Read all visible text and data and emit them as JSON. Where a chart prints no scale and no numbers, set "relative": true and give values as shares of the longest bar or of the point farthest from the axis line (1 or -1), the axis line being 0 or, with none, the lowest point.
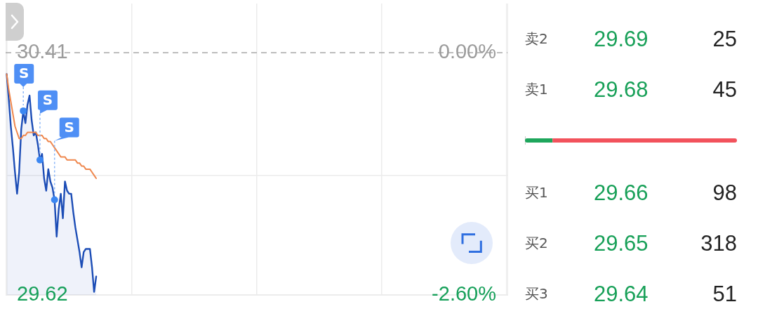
{
  "chart_data": [
    {
      "type": "line",
      "categories": [
        null,
        null,
        null,
        null,
        null,
        null,
        null,
        null,
        null,
        null,
        null,
        null,
        null,
        null,
        null,
        null,
        null,
        null,
        null,
        null,
        null,
        null,
        null,
        null,
        null,
        null,
        null,
        null,
        null,
        null,
        null,
        null,
        null,
        null,
        null,
        null,
        null,
        null,
        null,
        null,
        null,
        null,
        null,
        null,
        null,
        null,
        null,
        null,
        null,
        null,
        null,
        null,
        null,
        null,
        null,
        null,
        null,
        null,
        null,
        null,
        null,
        null,
        null,
        null,
        null,
        null,
        null,
        null,
        null,
        null,
        null,
        null,
        null,
        null,
        null,
        null,
        null,
        null,
        null,
        null,
        null,
        null,
        null,
        null,
        null,
        null,
        null,
        null,
        null,
        null,
        null,
        null,
        null,
        null,
        null,
        null,
        null,
        null,
        null,
        null,
        null,
        null,
        null,
        null,
        null,
        null,
        null,
        null,
        null,
        null,
        null,
        null,
        null,
        null,
        null,
        null,
        null,
        null,
        null,
        null,
        null,
        null,
        null,
        null,
        null,
        null,
        null,
        null,
        null,
        null,
        null,
        null,
        null,
        null,
        null,
        null,
        null,
        null,
        null,
        null,
        null,
        null,
        null,
        null,
        null,
        null,
        null,
        null,
        null,
        null,
        null,
        null,
        null,
        null,
        null,
        null,
        null,
        null,
        null,
        null,
        null,
        null,
        null,
        null,
        null,
        null,
        null,
        null,
        null,
        null,
        null,
        null,
        null,
        null,
        null,
        null,
        null,
        null,
        null,
        null,
        null,
        null,
        null,
        null,
        null,
        null,
        null,
        null,
        null,
        null,
        null,
        null,
        null,
        null,
        null,
        null,
        null,
        null,
        null,
        null,
        null,
        null,
        null,
        null,
        null,
        null,
        null,
        null,
        null,
        null,
        null,
        null,
        null,
        null,
        null,
        null,
        null,
        null,
        null,
        null,
        null,
        null,
        null,
        null,
        null,
        null,
        null,
        null,
        null,
        null,
        null,
        null,
        null,
        null,
        null,
        null,
        null,
        null,
        null,
        null,
        null
      ],
      "series": [
        {
          "type": "area",
          "color": "#1c4db6",
          "values": [
            30.34,
            30.26,
            30.17,
            30.1,
            30.02,
            29.95,
            30.02,
            30.16,
            30.22,
            30.18,
            30.24,
            30.27,
            30.19,
            30.14,
            30.15,
            30.11,
            30.06,
            30.08,
            30,
            29.96,
            30.03,
            29.99,
            29.97,
            29.93,
            29.81,
            29.9,
            29.95,
            29.87,
            29.99,
            29.96,
            29.95,
            29.95,
            29.89,
            29.84,
            29.8,
            29.76,
            29.71,
            29.76,
            29.77,
            29.77,
            29.77,
            29.71,
            29.63,
            29.68,
            null,
            null,
            null,
            null,
            null,
            null,
            null,
            null,
            null,
            null,
            null,
            null,
            null,
            null,
            null,
            null,
            null,
            null,
            null,
            null,
            null,
            null,
            null,
            null,
            null,
            null,
            null,
            null,
            null,
            null,
            null,
            null,
            null,
            null,
            null,
            null,
            null,
            null,
            null,
            null,
            null,
            null,
            null,
            null,
            null,
            null,
            null,
            null,
            null,
            null,
            null,
            null,
            null,
            null,
            null,
            null,
            null,
            null,
            null,
            null,
            null,
            null,
            null,
            null,
            null,
            null,
            null,
            null,
            null,
            null,
            null,
            null,
            null,
            null,
            null,
            null,
            null,
            null,
            null,
            null,
            null,
            null,
            null,
            null,
            null,
            null,
            null,
            null,
            null,
            null,
            null,
            null,
            null,
            null,
            null,
            null,
            null,
            null,
            null,
            null,
            null,
            null,
            null,
            null,
            null,
            null,
            null,
            null,
            null,
            null,
            null,
            null,
            null,
            null,
            null,
            null,
            null,
            null,
            null,
            null,
            null,
            null,
            null,
            null,
            null,
            null,
            null,
            null,
            null,
            null,
            null,
            null,
            null,
            null,
            null,
            null,
            null,
            null,
            null,
            null,
            null,
            null,
            null,
            null,
            null,
            null,
            null,
            null,
            null,
            null,
            null,
            null,
            null,
            null,
            null,
            null,
            null,
            null,
            null,
            null,
            null,
            null,
            null,
            null,
            null,
            null,
            null,
            null,
            null,
            null,
            null,
            null,
            null,
            null,
            null,
            null,
            null,
            null,
            null,
            null,
            null,
            null,
            null,
            null,
            null,
            null,
            null,
            null,
            null,
            null,
            null,
            null,
            null,
            null,
            null,
            null,
            null
          ]
        },
        {
          "type": "line",
          "color": "#ef874d",
          "values": [
            30.34,
            30.29,
            30.25,
            30.21,
            30.17,
            30.15,
            30.13,
            30.13,
            30.14,
            30.14,
            30.15,
            30.15,
            30.15,
            30.15,
            30.15,
            30.14,
            30.14,
            30.14,
            30.13,
            30.13,
            30.12,
            30.12,
            30.11,
            30.1,
            30.09,
            30.08,
            30.07,
            30.07,
            30.07,
            30.06,
            30.06,
            30.06,
            30.06,
            30.06,
            30.05,
            30.05,
            30.04,
            30.04,
            30.03,
            30.03,
            30.03,
            30.02,
            30.01,
            30,
            null,
            null,
            null,
            null,
            null,
            null,
            null,
            null,
            null,
            null,
            null,
            null,
            null,
            null,
            null,
            null,
            null,
            null,
            null,
            null,
            null,
            null,
            null,
            null,
            null,
            null,
            null,
            null,
            null,
            null,
            null,
            null,
            null,
            null,
            null,
            null,
            null,
            null,
            null,
            null,
            null,
            null,
            null,
            null,
            null,
            null,
            null,
            null,
            null,
            null,
            null,
            null,
            null,
            null,
            null,
            null,
            null,
            null,
            null,
            null,
            null,
            null,
            null,
            null,
            null,
            null,
            null,
            null,
            null,
            null,
            null,
            null,
            null,
            null,
            null,
            null,
            null,
            null,
            null,
            null,
            null,
            null,
            null,
            null,
            null,
            null,
            null,
            null,
            null,
            null,
            null,
            null,
            null,
            null,
            null,
            null,
            null,
            null,
            null,
            null,
            null,
            null,
            null,
            null,
            null,
            null,
            null,
            null,
            null,
            null,
            null,
            null,
            null,
            null,
            null,
            null,
            null,
            null,
            null,
            null,
            null,
            null,
            null,
            null,
            null,
            null,
            null,
            null,
            null,
            null,
            null,
            null,
            null,
            null,
            null,
            null,
            null,
            null,
            null,
            null,
            null,
            null,
            null,
            null,
            null,
            null,
            null,
            null,
            null,
            null,
            null,
            null,
            null,
            null,
            null,
            null,
            null,
            null,
            null,
            null,
            null,
            null,
            null,
            null,
            null,
            null,
            null,
            null,
            null,
            null,
            null,
            null,
            null,
            null,
            null,
            null,
            null,
            null,
            null,
            null,
            null,
            null,
            null,
            null,
            null,
            null,
            null,
            null,
            null,
            null,
            null,
            null,
            null,
            null,
            null,
            null,
            null
          ]
        },
        {
          "type": "scatter",
          "color": "#3b87f2",
          "marker": "circle",
          "values": [
            null,
            null,
            null,
            null,
            null,
            null,
            null,
            null,
            30.22,
            null,
            null,
            null,
            null,
            null,
            null,
            null,
            30.06,
            null,
            null,
            null,
            null,
            null,
            null,
            29.93,
            null,
            null,
            null,
            null,
            null,
            null,
            null,
            null,
            null,
            null,
            null,
            null,
            null,
            null,
            null,
            null,
            null,
            null,
            null,
            null,
            null,
            null,
            null,
            null,
            null,
            null,
            null,
            null,
            null,
            null,
            null,
            null,
            null,
            null,
            null,
            null,
            null,
            null,
            null,
            null,
            null,
            null,
            null,
            null,
            null,
            null,
            null,
            null,
            null,
            null,
            null,
            null,
            null,
            null,
            null,
            null,
            null,
            null,
            null,
            null,
            null,
            null,
            null,
            null,
            null,
            null,
            null,
            null,
            null,
            null,
            null,
            null,
            null,
            null,
            null,
            null,
            null,
            null,
            null,
            null,
            null,
            null,
            null,
            null,
            null,
            null,
            null,
            null,
            null,
            null,
            null,
            null,
            null,
            null,
            null,
            null,
            null,
            null,
            null,
            null,
            null,
            null,
            null,
            null,
            null,
            null,
            null,
            null,
            null,
            null,
            null,
            null,
            null,
            null,
            null,
            null,
            null,
            null,
            null,
            null,
            null,
            null,
            null,
            null,
            null,
            null,
            null,
            null,
            null,
            null,
            null,
            null,
            null,
            null,
            null,
            null,
            null,
            null,
            null,
            null,
            null,
            null,
            null,
            null,
            null,
            null,
            null,
            null,
            null,
            null,
            null,
            null,
            null,
            null,
            null,
            null,
            null,
            null,
            null,
            null,
            null,
            null,
            null,
            null,
            null,
            null,
            null,
            null,
            null,
            null,
            null,
            null,
            null,
            null,
            null,
            null,
            null,
            null,
            null,
            null,
            null,
            null,
            null,
            null,
            null,
            null,
            null,
            null,
            null,
            null,
            null,
            null,
            null,
            null,
            null,
            null,
            null,
            null,
            null,
            null,
            null,
            null,
            null,
            null,
            null,
            null,
            null,
            null,
            null,
            null,
            null,
            null,
            null,
            null,
            null,
            null,
            null
          ],
          "value_labels": [
            null,
            null,
            null,
            null,
            null,
            null,
            null,
            null,
            "S",
            null,
            null,
            null,
            null,
            null,
            null,
            null,
            "S",
            null,
            null,
            null,
            null,
            null,
            null,
            "S",
            null,
            null,
            null,
            null,
            null,
            null,
            null,
            null,
            null,
            null,
            null,
            null,
            null,
            null,
            null,
            null,
            null,
            null,
            null,
            null,
            null,
            null,
            null,
            null,
            null,
            null,
            null,
            null,
            null,
            null,
            null,
            null,
            null,
            null,
            null,
            null,
            null,
            null,
            null,
            null,
            null,
            null,
            null,
            null,
            null,
            null,
            null,
            null,
            null,
            null,
            null,
            null,
            null,
            null,
            null,
            null,
            null,
            null,
            null,
            null,
            null,
            null,
            null,
            null,
            null,
            null,
            null,
            null,
            null,
            null,
            null,
            null,
            null,
            null,
            null,
            null,
            null,
            null,
            null,
            null,
            null,
            null,
            null,
            null,
            null,
            null,
            null,
            null,
            null,
            null,
            null,
            null,
            null,
            null,
            null,
            null,
            null,
            null,
            null,
            null,
            null,
            null,
            null,
            null,
            null,
            null,
            null,
            null,
            null,
            null,
            null,
            null,
            null,
            null,
            null,
            null,
            null,
            null,
            null,
            null,
            null,
            null,
            null,
            null,
            null,
            null,
            null,
            null,
            null,
            null,
            null,
            null,
            null,
            null,
            null,
            null,
            null,
            null,
            null,
            null,
            null,
            null,
            null,
            null,
            null,
            null,
            null,
            null,
            null,
            null,
            null,
            null,
            null,
            null,
            null,
            null,
            null,
            null,
            null,
            null,
            null,
            null,
            null,
            null,
            null,
            null,
            null,
            null,
            null,
            null,
            null,
            null,
            null,
            null,
            null,
            null,
            null,
            null,
            null,
            null,
            null,
            null,
            null,
            null,
            null,
            null,
            null,
            null,
            null,
            null,
            null,
            null,
            null,
            null,
            null,
            null,
            null,
            null,
            null,
            null,
            null,
            null,
            null,
            null,
            null,
            null,
            null,
            null,
            null,
            null,
            null,
            null,
            null,
            null,
            null,
            null,
            null
          ]
        }
      ],
      "ylim": [
        29.62,
        30.57
      ],
      "yticks": [
        30.41,
        {
          "value": 30.01,
          "label": null
        },
        29.62
      ],
      "y2lim": [
        -2.6,
        0.53
      ],
      "y2ticks": [
        {
          "value": 0,
          "label": "0.00%"
        },
        {
          "value": -2.6,
          "label": "-2.60%"
        }
      ],
      "ref_lines": [
        {
          "axis": "y",
          "value": 30.41,
          "color": "#a6a6a6",
          "line_style": "dashed"
        }
      ],
      "grid": true
    },
    {
      "type": "other",
      "annotations": [
        "卖2",
        "29.69",
        "25",
        "卖1",
        "29.68",
        "45"
      ]
    },
    {
      "type": "bar",
      "orientation": "horizontal",
      "stacked": true,
      "relative": true,
      "categories": [
        null
      ],
      "series": [
        {
          "color": "#1ea65c",
          "values": [
            0.13
          ]
        },
        {
          "color": "#f2525c",
          "values": [
            0.87
          ]
        }
      ]
    },
    {
      "type": "other",
      "annotations": [
        "买1",
        "29.66",
        "98",
        "买2",
        "29.65",
        "318",
        "买3",
        "29.64",
        "51"
      ]
    }
  ]
}
